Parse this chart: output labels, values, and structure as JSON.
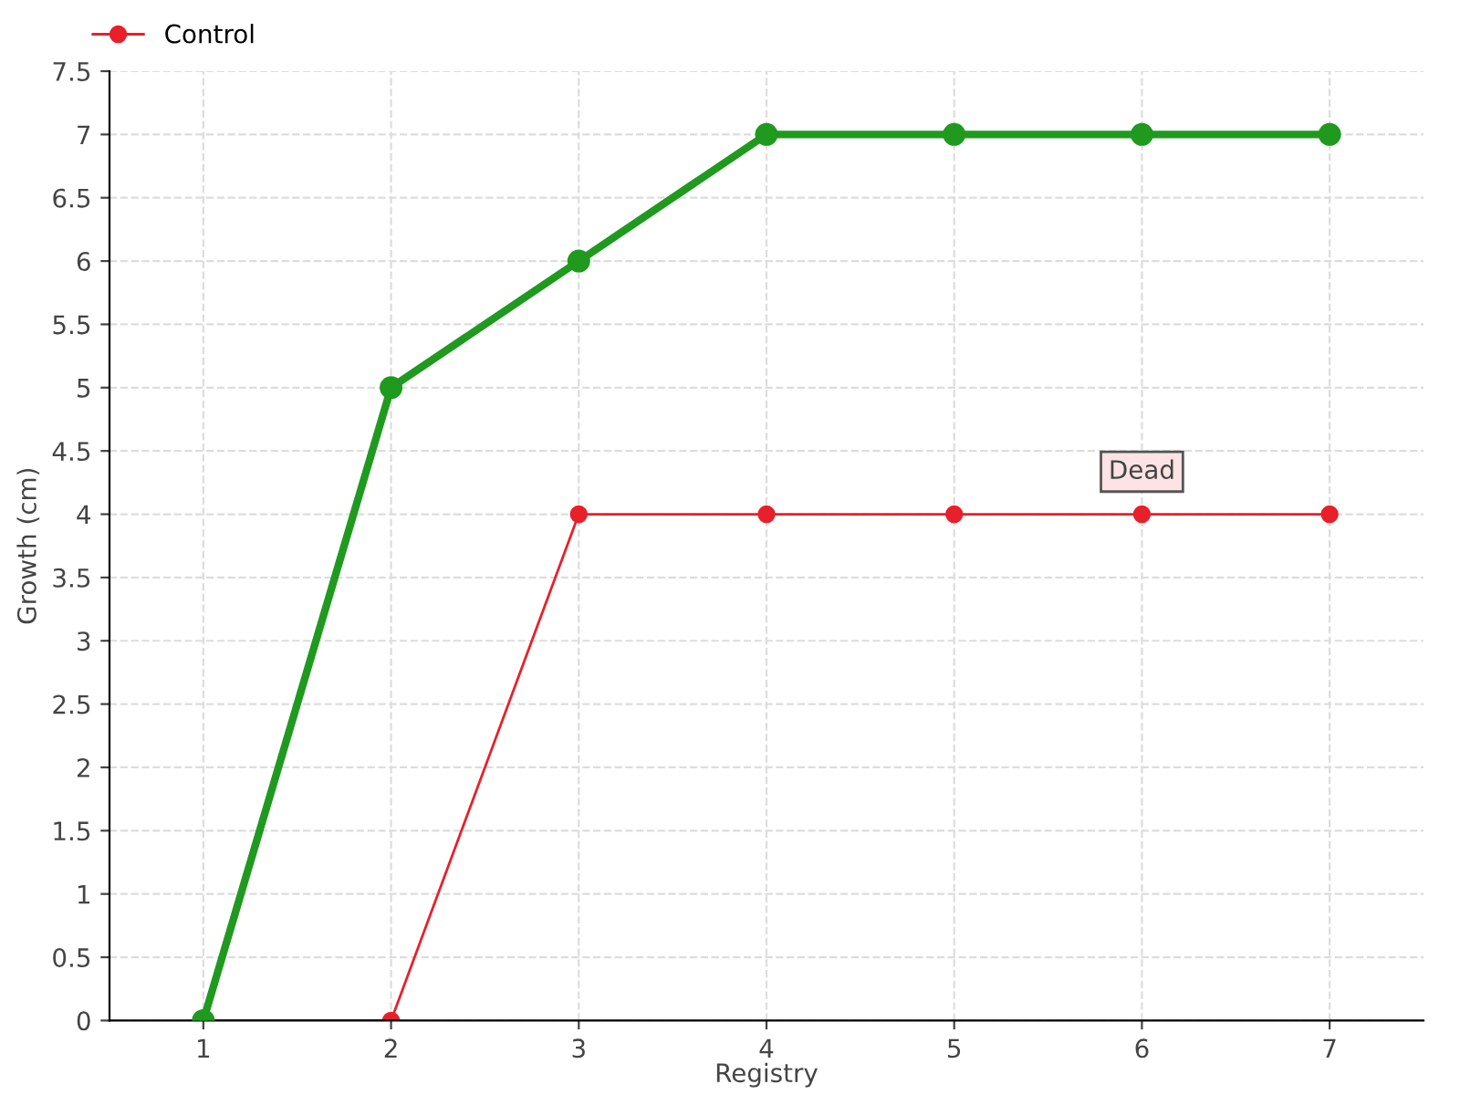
{
  "chart_data": {
    "type": "line",
    "xlabel": "Registry",
    "ylabel": "Growth (cm)",
    "x": [
      1,
      2,
      3,
      4,
      5,
      6,
      7
    ],
    "series": [
      {
        "color": "#1f9a1f",
        "values": [
          0,
          5,
          6,
          7,
          7,
          7,
          7
        ]
      },
      {
        "name": "Control",
        "color": "#e8202a",
        "values": [
          0,
          0,
          4,
          4,
          4,
          4,
          4
        ]
      }
    ],
    "xlim": [
      0.5,
      7.5
    ],
    "xticks": [
      1,
      2,
      3,
      4,
      5,
      6,
      7
    ],
    "ylim": [
      0,
      7.5
    ],
    "yticks": [
      0,
      0.5,
      1,
      1.5,
      2,
      2.5,
      3,
      3.5,
      4,
      4.5,
      5,
      5.5,
      6,
      6.5,
      7,
      7.5
    ],
    "grid": true,
    "legend": "top left",
    "marker": "circle",
    "line_style": "solid",
    "annotations": [
      {
        "text": "Dead",
        "x": 6,
        "y": 4
      }
    ]
  }
}
